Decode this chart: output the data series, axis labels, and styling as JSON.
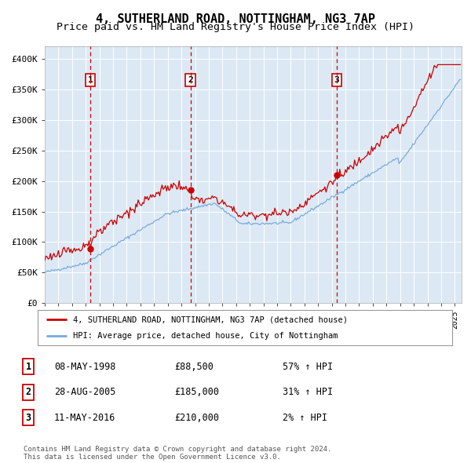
{
  "title": "4, SUTHERLAND ROAD, NOTTINGHAM, NG3 7AP",
  "subtitle": "Price paid vs. HM Land Registry's House Price Index (HPI)",
  "title_fontsize": 11,
  "subtitle_fontsize": 9.5,
  "background_color": "#dce9f5",
  "plot_bg_color": "#dce9f5",
  "fig_bg_color": "#ffffff",
  "sales": [
    {
      "date": "1998-05-08",
      "price": 88500,
      "label": "1"
    },
    {
      "date": "2005-08-28",
      "price": 185000,
      "label": "2"
    },
    {
      "date": "2016-05-11",
      "price": 210000,
      "label": "3"
    }
  ],
  "sale_labels_info": [
    {
      "label": "1",
      "date": "08-MAY-1998",
      "price": "£88,500",
      "hpi": "57% ↑ HPI"
    },
    {
      "label": "2",
      "date": "28-AUG-2005",
      "price": "£185,000",
      "hpi": "31% ↑ HPI"
    },
    {
      "label": "3",
      "date": "11-MAY-2016",
      "price": "£210,000",
      "hpi": "2% ↑ HPI"
    }
  ],
  "legend_entries": [
    "4, SUTHERLAND ROAD, NOTTINGHAM, NG3 7AP (detached house)",
    "HPI: Average price, detached house, City of Nottingham"
  ],
  "hpi_color": "#7aabdb",
  "price_color": "#cc0000",
  "dashed_line_color": "#cc0000",
  "marker_color": "#cc0000",
  "tick_fontsize": 8,
  "footer_text": "Contains HM Land Registry data © Crown copyright and database right 2024.\nThis data is licensed under the Open Government Licence v3.0.",
  "ylim": [
    0,
    420000
  ],
  "yticks": [
    0,
    50000,
    100000,
    150000,
    200000,
    250000,
    300000,
    350000,
    400000
  ],
  "ytick_labels": [
    "£0",
    "£50K",
    "£100K",
    "£150K",
    "£200K",
    "£250K",
    "£300K",
    "£350K",
    "£400K"
  ]
}
